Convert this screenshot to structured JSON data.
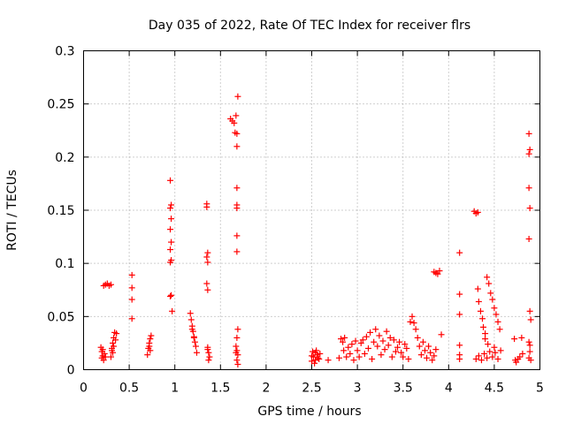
{
  "chart_data": {
    "type": "scatter",
    "title": "Day 035 of 2022, Rate Of TEC Index for receiver flrs",
    "xlabel": "GPS time / hours",
    "ylabel": "ROTI / TECUs",
    "xlim": [
      0,
      5
    ],
    "ylim": [
      0,
      0.3
    ],
    "xticks": [
      0,
      0.5,
      1,
      1.5,
      2,
      2.5,
      3,
      3.5,
      4,
      4.5,
      5
    ],
    "xtick_labels": [
      "0",
      "0.5",
      "1",
      "1.5",
      "2",
      "2.5",
      "3",
      "3.5",
      "4",
      "4.5",
      "5"
    ],
    "yticks": [
      0,
      0.05,
      0.1,
      0.15,
      0.2,
      0.25,
      0.3
    ],
    "ytick_labels": [
      "0",
      "0.05",
      "0.1",
      "0.15",
      "0.2",
      "0.25",
      "0.3"
    ],
    "grid": true,
    "marker": "+",
    "color": "#ff0000",
    "series": [
      {
        "name": "ROTI",
        "points": [
          [
            0.19,
            0.021
          ],
          [
            0.2,
            0.017
          ],
          [
            0.21,
            0.013
          ],
          [
            0.22,
            0.009
          ],
          [
            0.23,
            0.015
          ],
          [
            0.21,
            0.019
          ],
          [
            0.24,
            0.012
          ],
          [
            0.2,
            0.011
          ],
          [
            0.22,
            0.079
          ],
          [
            0.24,
            0.08
          ],
          [
            0.26,
            0.081
          ],
          [
            0.28,
            0.079
          ],
          [
            0.3,
            0.08
          ],
          [
            0.3,
            0.012
          ],
          [
            0.31,
            0.02
          ],
          [
            0.32,
            0.025
          ],
          [
            0.33,
            0.03
          ],
          [
            0.34,
            0.035
          ],
          [
            0.32,
            0.016
          ],
          [
            0.35,
            0.028
          ],
          [
            0.33,
            0.022
          ],
          [
            0.36,
            0.034
          ],
          [
            0.31,
            0.018
          ],
          [
            0.53,
            0.089
          ],
          [
            0.53,
            0.077
          ],
          [
            0.53,
            0.066
          ],
          [
            0.53,
            0.048
          ],
          [
            0.7,
            0.014
          ],
          [
            0.71,
            0.02
          ],
          [
            0.72,
            0.025
          ],
          [
            0.73,
            0.029
          ],
          [
            0.74,
            0.032
          ],
          [
            0.72,
            0.022
          ],
          [
            0.73,
            0.018
          ],
          [
            0.95,
            0.178
          ],
          [
            0.96,
            0.155
          ],
          [
            0.95,
            0.152
          ],
          [
            0.96,
            0.142
          ],
          [
            0.95,
            0.132
          ],
          [
            0.96,
            0.12
          ],
          [
            0.95,
            0.113
          ],
          [
            0.96,
            0.103
          ],
          [
            0.95,
            0.101
          ],
          [
            0.96,
            0.07
          ],
          [
            0.95,
            0.069
          ],
          [
            0.97,
            0.055
          ],
          [
            1.17,
            0.053
          ],
          [
            1.18,
            0.047
          ],
          [
            1.19,
            0.041
          ],
          [
            1.2,
            0.036
          ],
          [
            1.21,
            0.031
          ],
          [
            1.22,
            0.026
          ],
          [
            1.23,
            0.022
          ],
          [
            1.24,
            0.016
          ],
          [
            1.19,
            0.038
          ],
          [
            1.21,
            0.03
          ],
          [
            1.35,
            0.156
          ],
          [
            1.35,
            0.153
          ],
          [
            1.36,
            0.11
          ],
          [
            1.35,
            0.106
          ],
          [
            1.36,
            0.101
          ],
          [
            1.35,
            0.081
          ],
          [
            1.36,
            0.075
          ],
          [
            1.36,
            0.021
          ],
          [
            1.37,
            0.016
          ],
          [
            1.38,
            0.012
          ],
          [
            1.37,
            0.009
          ],
          [
            1.36,
            0.019
          ],
          [
            1.61,
            0.236
          ],
          [
            1.63,
            0.234
          ],
          [
            1.65,
            0.232
          ],
          [
            1.66,
            0.223
          ],
          [
            1.68,
            0.222
          ],
          [
            1.67,
            0.239
          ],
          [
            1.69,
            0.257
          ],
          [
            1.68,
            0.21
          ],
          [
            1.68,
            0.171
          ],
          [
            1.68,
            0.155
          ],
          [
            1.68,
            0.152
          ],
          [
            1.68,
            0.126
          ],
          [
            1.68,
            0.111
          ],
          [
            1.69,
            0.038
          ],
          [
            1.68,
            0.03
          ],
          [
            1.67,
            0.022
          ],
          [
            1.68,
            0.018
          ],
          [
            1.69,
            0.014
          ],
          [
            1.68,
            0.009
          ],
          [
            1.69,
            0.005
          ],
          [
            1.67,
            0.016
          ],
          [
            2.5,
            0.008
          ],
          [
            2.52,
            0.012
          ],
          [
            2.54,
            0.016
          ],
          [
            2.56,
            0.014
          ],
          [
            2.58,
            0.01
          ],
          [
            2.5,
            0.013
          ],
          [
            2.53,
            0.006
          ],
          [
            2.55,
            0.018
          ],
          [
            2.57,
            0.011
          ],
          [
            2.59,
            0.015
          ],
          [
            2.51,
            0.017
          ],
          [
            2.54,
            0.009
          ],
          [
            2.68,
            0.009
          ],
          [
            2.8,
            0.011
          ],
          [
            2.82,
            0.029
          ],
          [
            2.84,
            0.026
          ],
          [
            2.86,
            0.03
          ],
          [
            2.85,
            0.018
          ],
          [
            2.88,
            0.012
          ],
          [
            2.9,
            0.021
          ],
          [
            2.92,
            0.015
          ],
          [
            2.94,
            0.024
          ],
          [
            2.96,
            0.009
          ],
          [
            2.98,
            0.027
          ],
          [
            3.0,
            0.018
          ],
          [
            3.02,
            0.012
          ],
          [
            3.04,
            0.025
          ],
          [
            3.06,
            0.028
          ],
          [
            3.08,
            0.015
          ],
          [
            3.1,
            0.031
          ],
          [
            3.12,
            0.02
          ],
          [
            3.14,
            0.035
          ],
          [
            3.16,
            0.01
          ],
          [
            3.18,
            0.026
          ],
          [
            3.2,
            0.038
          ],
          [
            3.22,
            0.022
          ],
          [
            3.24,
            0.032
          ],
          [
            3.26,
            0.014
          ],
          [
            3.28,
            0.027
          ],
          [
            3.3,
            0.019
          ],
          [
            3.32,
            0.036
          ],
          [
            3.34,
            0.023
          ],
          [
            3.36,
            0.03
          ],
          [
            3.38,
            0.012
          ],
          [
            3.4,
            0.028
          ],
          [
            3.42,
            0.017
          ],
          [
            3.44,
            0.021
          ],
          [
            3.46,
            0.026
          ],
          [
            3.48,
            0.016
          ],
          [
            3.5,
            0.012
          ],
          [
            3.52,
            0.024
          ],
          [
            3.54,
            0.02
          ],
          [
            3.56,
            0.01
          ],
          [
            3.58,
            0.045
          ],
          [
            3.6,
            0.05
          ],
          [
            3.62,
            0.044
          ],
          [
            3.64,
            0.038
          ],
          [
            3.66,
            0.03
          ],
          [
            3.68,
            0.022
          ],
          [
            3.7,
            0.014
          ],
          [
            3.72,
            0.026
          ],
          [
            3.74,
            0.018
          ],
          [
            3.76,
            0.011
          ],
          [
            3.78,
            0.022
          ],
          [
            3.8,
            0.016
          ],
          [
            3.82,
            0.009
          ],
          [
            3.84,
            0.013
          ],
          [
            3.86,
            0.019
          ],
          [
            3.84,
            0.092
          ],
          [
            3.86,
            0.091
          ],
          [
            3.88,
            0.09
          ],
          [
            3.9,
            0.093
          ],
          [
            3.92,
            0.033
          ],
          [
            4.12,
            0.11
          ],
          [
            4.12,
            0.071
          ],
          [
            4.12,
            0.052
          ],
          [
            4.12,
            0.023
          ],
          [
            4.12,
            0.014
          ],
          [
            4.12,
            0.01
          ],
          [
            4.28,
            0.149
          ],
          [
            4.3,
            0.147
          ],
          [
            4.32,
            0.148
          ],
          [
            4.32,
            0.076
          ],
          [
            4.33,
            0.064
          ],
          [
            4.35,
            0.055
          ],
          [
            4.37,
            0.048
          ],
          [
            4.38,
            0.04
          ],
          [
            4.4,
            0.034
          ],
          [
            4.42,
            0.087
          ],
          [
            4.44,
            0.081
          ],
          [
            4.46,
            0.072
          ],
          [
            4.48,
            0.066
          ],
          [
            4.5,
            0.058
          ],
          [
            4.52,
            0.052
          ],
          [
            4.54,
            0.045
          ],
          [
            4.56,
            0.038
          ],
          [
            4.3,
            0.01
          ],
          [
            4.33,
            0.013
          ],
          [
            4.36,
            0.009
          ],
          [
            4.39,
            0.015
          ],
          [
            4.42,
            0.011
          ],
          [
            4.45,
            0.017
          ],
          [
            4.48,
            0.012
          ],
          [
            4.51,
            0.016
          ],
          [
            4.54,
            0.01
          ],
          [
            4.57,
            0.018
          ],
          [
            4.4,
            0.029
          ],
          [
            4.43,
            0.024
          ],
          [
            4.5,
            0.021
          ],
          [
            4.72,
            0.029
          ],
          [
            4.73,
            0.009
          ],
          [
            4.74,
            0.007
          ],
          [
            4.76,
            0.01
          ],
          [
            4.78,
            0.012
          ],
          [
            4.8,
            0.03
          ],
          [
            4.81,
            0.015
          ],
          [
            4.88,
            0.222
          ],
          [
            4.89,
            0.207
          ],
          [
            4.88,
            0.203
          ],
          [
            4.88,
            0.171
          ],
          [
            4.89,
            0.152
          ],
          [
            4.88,
            0.123
          ],
          [
            4.89,
            0.055
          ],
          [
            4.9,
            0.047
          ],
          [
            4.88,
            0.026
          ],
          [
            4.89,
            0.017
          ],
          [
            4.88,
            0.011
          ],
          [
            4.9,
            0.009
          ],
          [
            4.89,
            0.023
          ]
        ]
      }
    ]
  }
}
